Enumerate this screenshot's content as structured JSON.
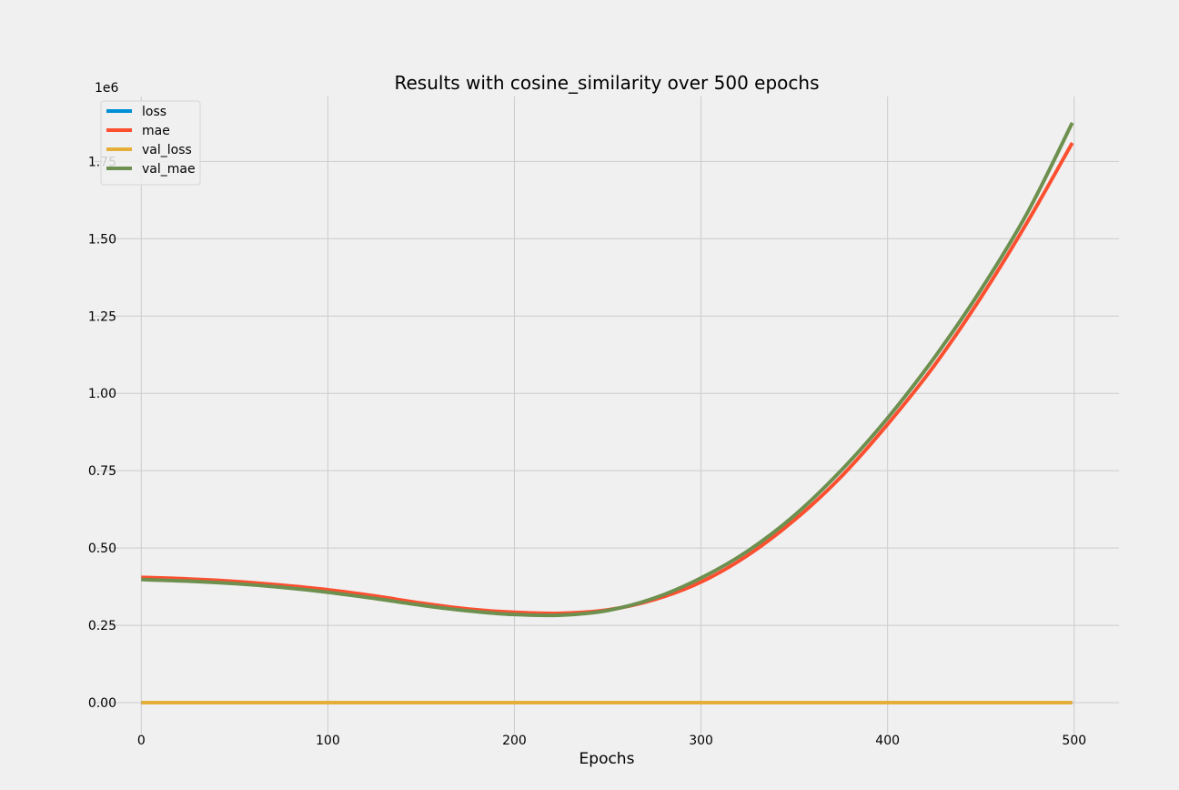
{
  "chart_data": {
    "type": "line",
    "title": "Results with cosine_similarity over 500 epochs",
    "xlabel": "Epochs",
    "ylabel": "",
    "offset_label": "1e6",
    "xlim": [
      -25,
      524
    ],
    "ylim": [
      -0.1,
      1.96
    ],
    "xticks": [
      0,
      100,
      200,
      300,
      400,
      500
    ],
    "xtick_labels": [
      "0",
      "100",
      "200",
      "300",
      "400",
      "500"
    ],
    "yticks": [
      0,
      0.25,
      0.5,
      0.75,
      1.0,
      1.25,
      1.5,
      1.75
    ],
    "ytick_labels": [
      "0.00",
      "0.25",
      "0.50",
      "0.75",
      "1.00",
      "1.25",
      "1.50",
      "1.75"
    ],
    "grid": true,
    "legend_position": "top-left",
    "series": [
      {
        "name": "loss",
        "color": "#008fd5",
        "x": [
          0,
          499
        ],
        "y": [
          0.0,
          0.0
        ]
      },
      {
        "name": "mae",
        "color": "#fc4f30",
        "x": [
          0,
          25,
          50,
          75,
          100,
          125,
          150,
          175,
          200,
          225,
          250,
          275,
          300,
          325,
          350,
          375,
          400,
          425,
          450,
          475,
          499
        ],
        "y": [
          0.405,
          0.4,
          0.392,
          0.38,
          0.365,
          0.345,
          0.322,
          0.303,
          0.292,
          0.289,
          0.3,
          0.333,
          0.39,
          0.476,
          0.59,
          0.73,
          0.9,
          1.09,
          1.31,
          1.555,
          1.81
        ]
      },
      {
        "name": "val_loss",
        "color": "#e5ae38",
        "x": [
          0,
          499
        ],
        "y": [
          0.0,
          0.0
        ]
      },
      {
        "name": "val_mae",
        "color": "#6d904f",
        "x": [
          0,
          25,
          50,
          75,
          100,
          125,
          150,
          175,
          200,
          225,
          250,
          275,
          300,
          325,
          350,
          375,
          400,
          425,
          450,
          475,
          499
        ],
        "y": [
          0.398,
          0.393,
          0.385,
          0.373,
          0.357,
          0.337,
          0.315,
          0.297,
          0.285,
          0.283,
          0.298,
          0.338,
          0.403,
          0.49,
          0.605,
          0.75,
          0.92,
          1.115,
          1.335,
          1.585,
          1.875
        ]
      }
    ]
  }
}
